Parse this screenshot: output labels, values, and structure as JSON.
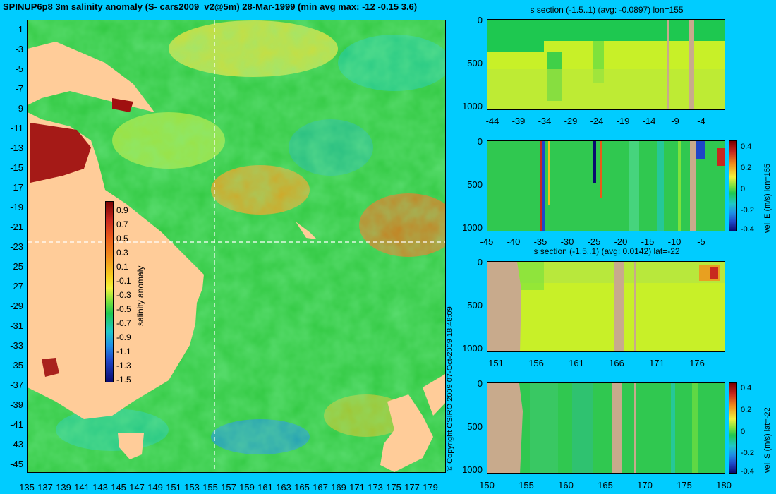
{
  "title": "SPINUP6p8 3m salinity anomaly (S- cars2009_v2@5m) 28-Mar-1999 (min avg max: -12 -0.15 3.6)",
  "copyright": "© Copyright CSIRO 2009   07-Oct-2009 18:48:09",
  "colors": {
    "background": "#00ccff",
    "land": "#ffcc99",
    "section_land": "#c8aa8c",
    "ocean": "#30c840"
  },
  "map": {
    "lat_ticks": [
      "-1",
      "-3",
      "-5",
      "-7",
      "-9",
      "-11",
      "-13",
      "-15",
      "-17",
      "-19",
      "-21",
      "-23",
      "-25",
      "-27",
      "-29",
      "-31",
      "-33",
      "-35",
      "-37",
      "-39",
      "-41",
      "-43",
      "-45"
    ],
    "lon_ticks": [
      "135",
      "137",
      "139",
      "141",
      "143",
      "145",
      "147",
      "149",
      "151",
      "153",
      "155",
      "157",
      "159",
      "161",
      "163",
      "165",
      "167",
      "169",
      "171",
      "173",
      "175",
      "177",
      "179"
    ],
    "crosshair": {
      "lon": 155,
      "lat": -22
    }
  },
  "colorbar": {
    "label": "salinity anomaly",
    "ticks": [
      "0.9",
      "0.7",
      "0.5",
      "0.3",
      "0.1",
      "-0.1",
      "-0.3",
      "-0.5",
      "-0.7",
      "-0.9",
      "-1.1",
      "-1.3",
      "-1.5"
    ]
  },
  "panels": [
    {
      "title": "s section (-1.5..1) (avg: -0.0897) lon=155",
      "y_ticks": [
        "0",
        "500",
        "1000"
      ],
      "x_ticks": [
        "-44",
        "-39",
        "-34",
        "-29",
        "-24",
        "-19",
        "-14",
        "-9",
        "-4"
      ]
    },
    {
      "title": "",
      "y_ticks": [
        "0",
        "500",
        "1000"
      ],
      "x_ticks": [
        "-45",
        "-40",
        "-35",
        "-30",
        "-25",
        "-20",
        "-15",
        "-10",
        "-5"
      ],
      "colorbar_label": "vel. E (m/s) lon=155",
      "colorbar_ticks": [
        "0.4",
        "0.2",
        "0",
        "-0.2",
        "-0.4"
      ]
    },
    {
      "title": "s section (-1.5..1) (avg: 0.0142) lat=-22",
      "y_ticks": [
        "0",
        "500",
        "1000"
      ],
      "x_ticks": [
        "151",
        "156",
        "161",
        "166",
        "171",
        "176"
      ]
    },
    {
      "title": "",
      "y_ticks": [
        "0",
        "500",
        "1000"
      ],
      "x_ticks": [
        "150",
        "155",
        "160",
        "165",
        "170",
        "175",
        "180"
      ],
      "colorbar_label": "vel. S (m/s) lat=-22",
      "colorbar_ticks": [
        "0.4",
        "0.2",
        "0",
        "-0.2",
        "-0.4"
      ]
    }
  ]
}
